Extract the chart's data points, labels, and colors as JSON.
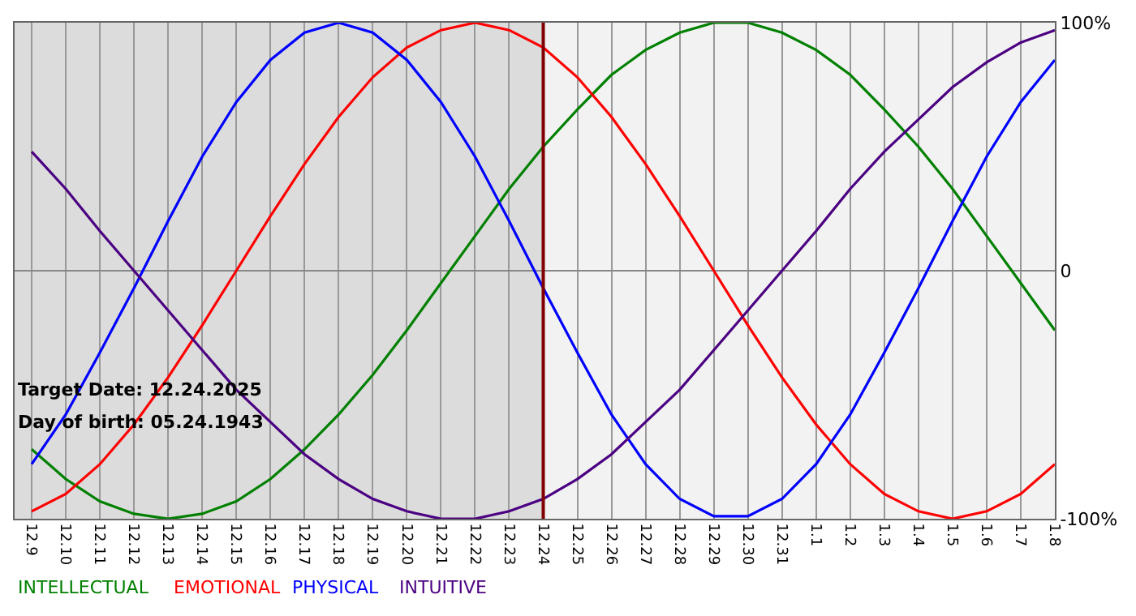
{
  "chart_data": {
    "type": "line",
    "categories": [
      "12.9",
      "12.10",
      "12.11",
      "12.12",
      "12.13",
      "12.14",
      "12.15",
      "12.16",
      "12.17",
      "12.18",
      "12.19",
      "12.20",
      "12.21",
      "12.22",
      "12.23",
      "12.24",
      "12.25",
      "12.26",
      "12.27",
      "12.28",
      "12.29",
      "12.30",
      "12.31",
      "1.1",
      "1.2",
      "1.3",
      "1.4",
      "1.5",
      "1.6",
      "1.7",
      "1.8"
    ],
    "series": [
      {
        "name": "INTELLECTUAL",
        "color": "#008000",
        "values": [
          -72,
          -84,
          -93,
          -98,
          -100,
          -98,
          -93,
          -84,
          -72,
          -58,
          -42,
          -24,
          -5,
          14,
          33,
          50,
          65,
          79,
          89,
          96,
          100,
          100,
          96,
          89,
          79,
          65,
          50,
          33,
          14,
          -5,
          -24
        ]
      },
      {
        "name": "EMOTIONAL",
        "color": "#ff0000",
        "values": [
          -97,
          -90,
          -78,
          -62,
          -43,
          -22,
          0,
          22,
          43,
          62,
          78,
          90,
          97,
          100,
          97,
          90,
          78,
          62,
          43,
          22,
          0,
          -22,
          -43,
          -62,
          -78,
          -90,
          -97,
          -100,
          -97,
          -90,
          -78
        ]
      },
      {
        "name": "PHYSICAL",
        "color": "#0000ff",
        "values": [
          -78,
          -58,
          -33,
          -7,
          20,
          46,
          68,
          85,
          96,
          100,
          96,
          85,
          68,
          46,
          20,
          -7,
          -33,
          -58,
          -78,
          -92,
          -99,
          -99,
          -92,
          -78,
          -58,
          -33,
          -7,
          20,
          46,
          68,
          85
        ]
      },
      {
        "name": "INTUITIVE",
        "color": "#4b0082",
        "values": [
          48,
          33,
          16,
          0,
          -16,
          -32,
          -48,
          -61,
          -74,
          -84,
          -92,
          -97,
          -100,
          -100,
          -97,
          -92,
          -84,
          -74,
          -61,
          -48,
          -32,
          -16,
          0,
          16,
          33,
          48,
          61,
          74,
          84,
          92,
          97
        ]
      }
    ],
    "ylim": [
      -100,
      100
    ],
    "yticks": [
      {
        "value": 100,
        "label": "100%"
      },
      0,
      {
        "value": -100,
        "label": "-100%"
      }
    ],
    "grid": true,
    "marker": "none",
    "line_style": "solid",
    "bands": [
      {
        "axis": "x",
        "from": "12.9",
        "to": "12.24",
        "color": "#dcdcdc"
      }
    ],
    "ref_lines": [
      {
        "axis": "x",
        "value": "12.24",
        "color": "#800000"
      }
    ],
    "annotations": [
      "Target Date: 12.24.2025",
      "Day of birth: 05.24.1943"
    ]
  }
}
